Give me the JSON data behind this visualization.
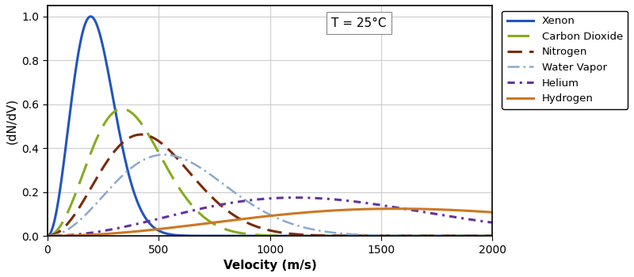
{
  "title": "T = 25°C",
  "xlabel": "Velocity (m/s)",
  "ylabel": "(dN/dV)",
  "xlim": [
    0,
    2000
  ],
  "ylim": [
    0,
    1.05
  ],
  "gases": [
    {
      "name": "Xenon",
      "M": 0.13129,
      "color": "#2255bb",
      "linestyle": "solid",
      "linewidth": 2.2
    },
    {
      "name": "Carbon Dioxide",
      "M": 0.04401,
      "color": "#88aa22",
      "linestyle": "co2dash",
      "linewidth": 2.2
    },
    {
      "name": "Nitrogen",
      "M": 0.02802,
      "color": "#7a2a0a",
      "linestyle": "n2dash",
      "linewidth": 2.2
    },
    {
      "name": "Water Vapor",
      "M": 0.01801,
      "color": "#88aacc",
      "linestyle": "h2odash",
      "linewidth": 1.8
    },
    {
      "name": "Helium",
      "M": 0.004,
      "color": "#663399",
      "linestyle": "hedash",
      "linewidth": 2.2
    },
    {
      "name": "Hydrogen",
      "M": 0.00202,
      "color": "#cc7722",
      "linestyle": "solid",
      "linewidth": 2.2
    }
  ],
  "T": 298.15,
  "R": 8.314,
  "xticks": [
    0,
    500,
    1000,
    1500,
    2000
  ],
  "yticks": [
    0.0,
    0.2,
    0.4,
    0.6,
    0.8,
    1.0
  ],
  "grid_color": "#cccccc",
  "bg_color": "#ffffff"
}
